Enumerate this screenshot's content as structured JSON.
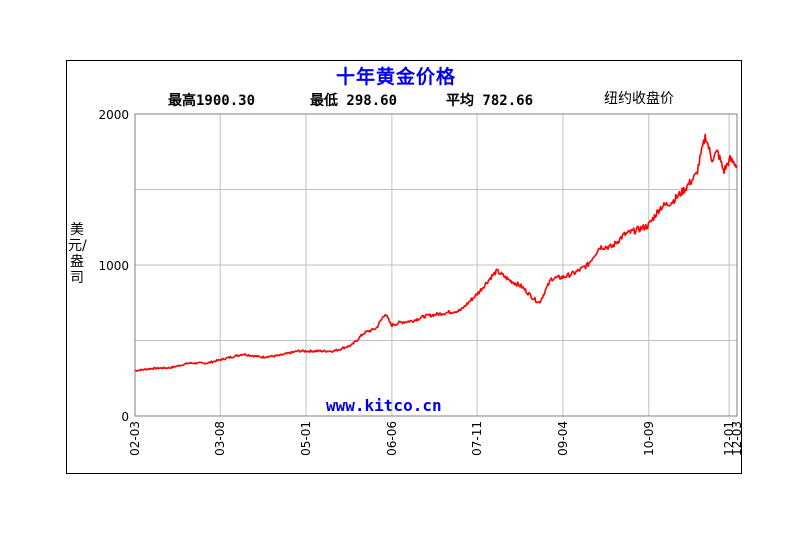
{
  "chart_data": {
    "type": "line",
    "title": "十年黄金价格",
    "stats": {
      "high": "最高1900.30",
      "low": "最低 298.60",
      "avg": "平均 782.66"
    },
    "market_label": "纽约收盘价",
    "ylabel": "美元/盎司",
    "source": "www.kitco.cn",
    "ylim": [
      0,
      2000
    ],
    "yticks": [
      0,
      1000,
      2000
    ],
    "ytick_labels": [
      "0",
      "1000",
      "2000"
    ],
    "xlim": [
      2002.21,
      2012.17
    ],
    "xticks": [
      {
        "label": "02-03",
        "t": 2002.21
      },
      {
        "label": "03-08",
        "t": 2003.62
      },
      {
        "label": "05-01",
        "t": 2005.04
      },
      {
        "label": "06-06",
        "t": 2006.46
      },
      {
        "label": "07-11",
        "t": 2007.87
      },
      {
        "label": "09-04",
        "t": 2009.29
      },
      {
        "label": "10-09",
        "t": 2010.71
      },
      {
        "label": "12-01",
        "t": 2012.04
      },
      {
        "label": "12-03",
        "t": 2012.17
      }
    ],
    "grid": true,
    "series": [
      {
        "color": "#ff0000",
        "x": [
          2002.21,
          2002.5,
          2002.8,
          2003.1,
          2003.4,
          2003.7,
          2004.0,
          2004.3,
          2004.6,
          2004.9,
          2005.2,
          2005.5,
          2005.8,
          2006.0,
          2006.2,
          2006.35,
          2006.45,
          2006.6,
          2006.8,
          2007.0,
          2007.3,
          2007.6,
          2007.9,
          2008.1,
          2008.2,
          2008.4,
          2008.6,
          2008.8,
          2008.9,
          2009.1,
          2009.3,
          2009.5,
          2009.7,
          2009.9,
          2010.1,
          2010.3,
          2010.5,
          2010.7,
          2010.9,
          2011.1,
          2011.3,
          2011.5,
          2011.65,
          2011.75,
          2011.85,
          2011.95,
          2012.05,
          2012.17
        ],
        "y": [
          300,
          315,
          320,
          350,
          350,
          380,
          410,
          390,
          400,
          430,
          430,
          430,
          470,
          550,
          580,
          680,
          600,
          620,
          630,
          660,
          680,
          700,
          820,
          920,
          960,
          900,
          860,
          780,
          750,
          910,
          920,
          950,
          1000,
          1120,
          1120,
          1200,
          1230,
          1260,
          1380,
          1420,
          1500,
          1600,
          1860,
          1700,
          1750,
          1620,
          1700,
          1660
        ]
      }
    ]
  }
}
